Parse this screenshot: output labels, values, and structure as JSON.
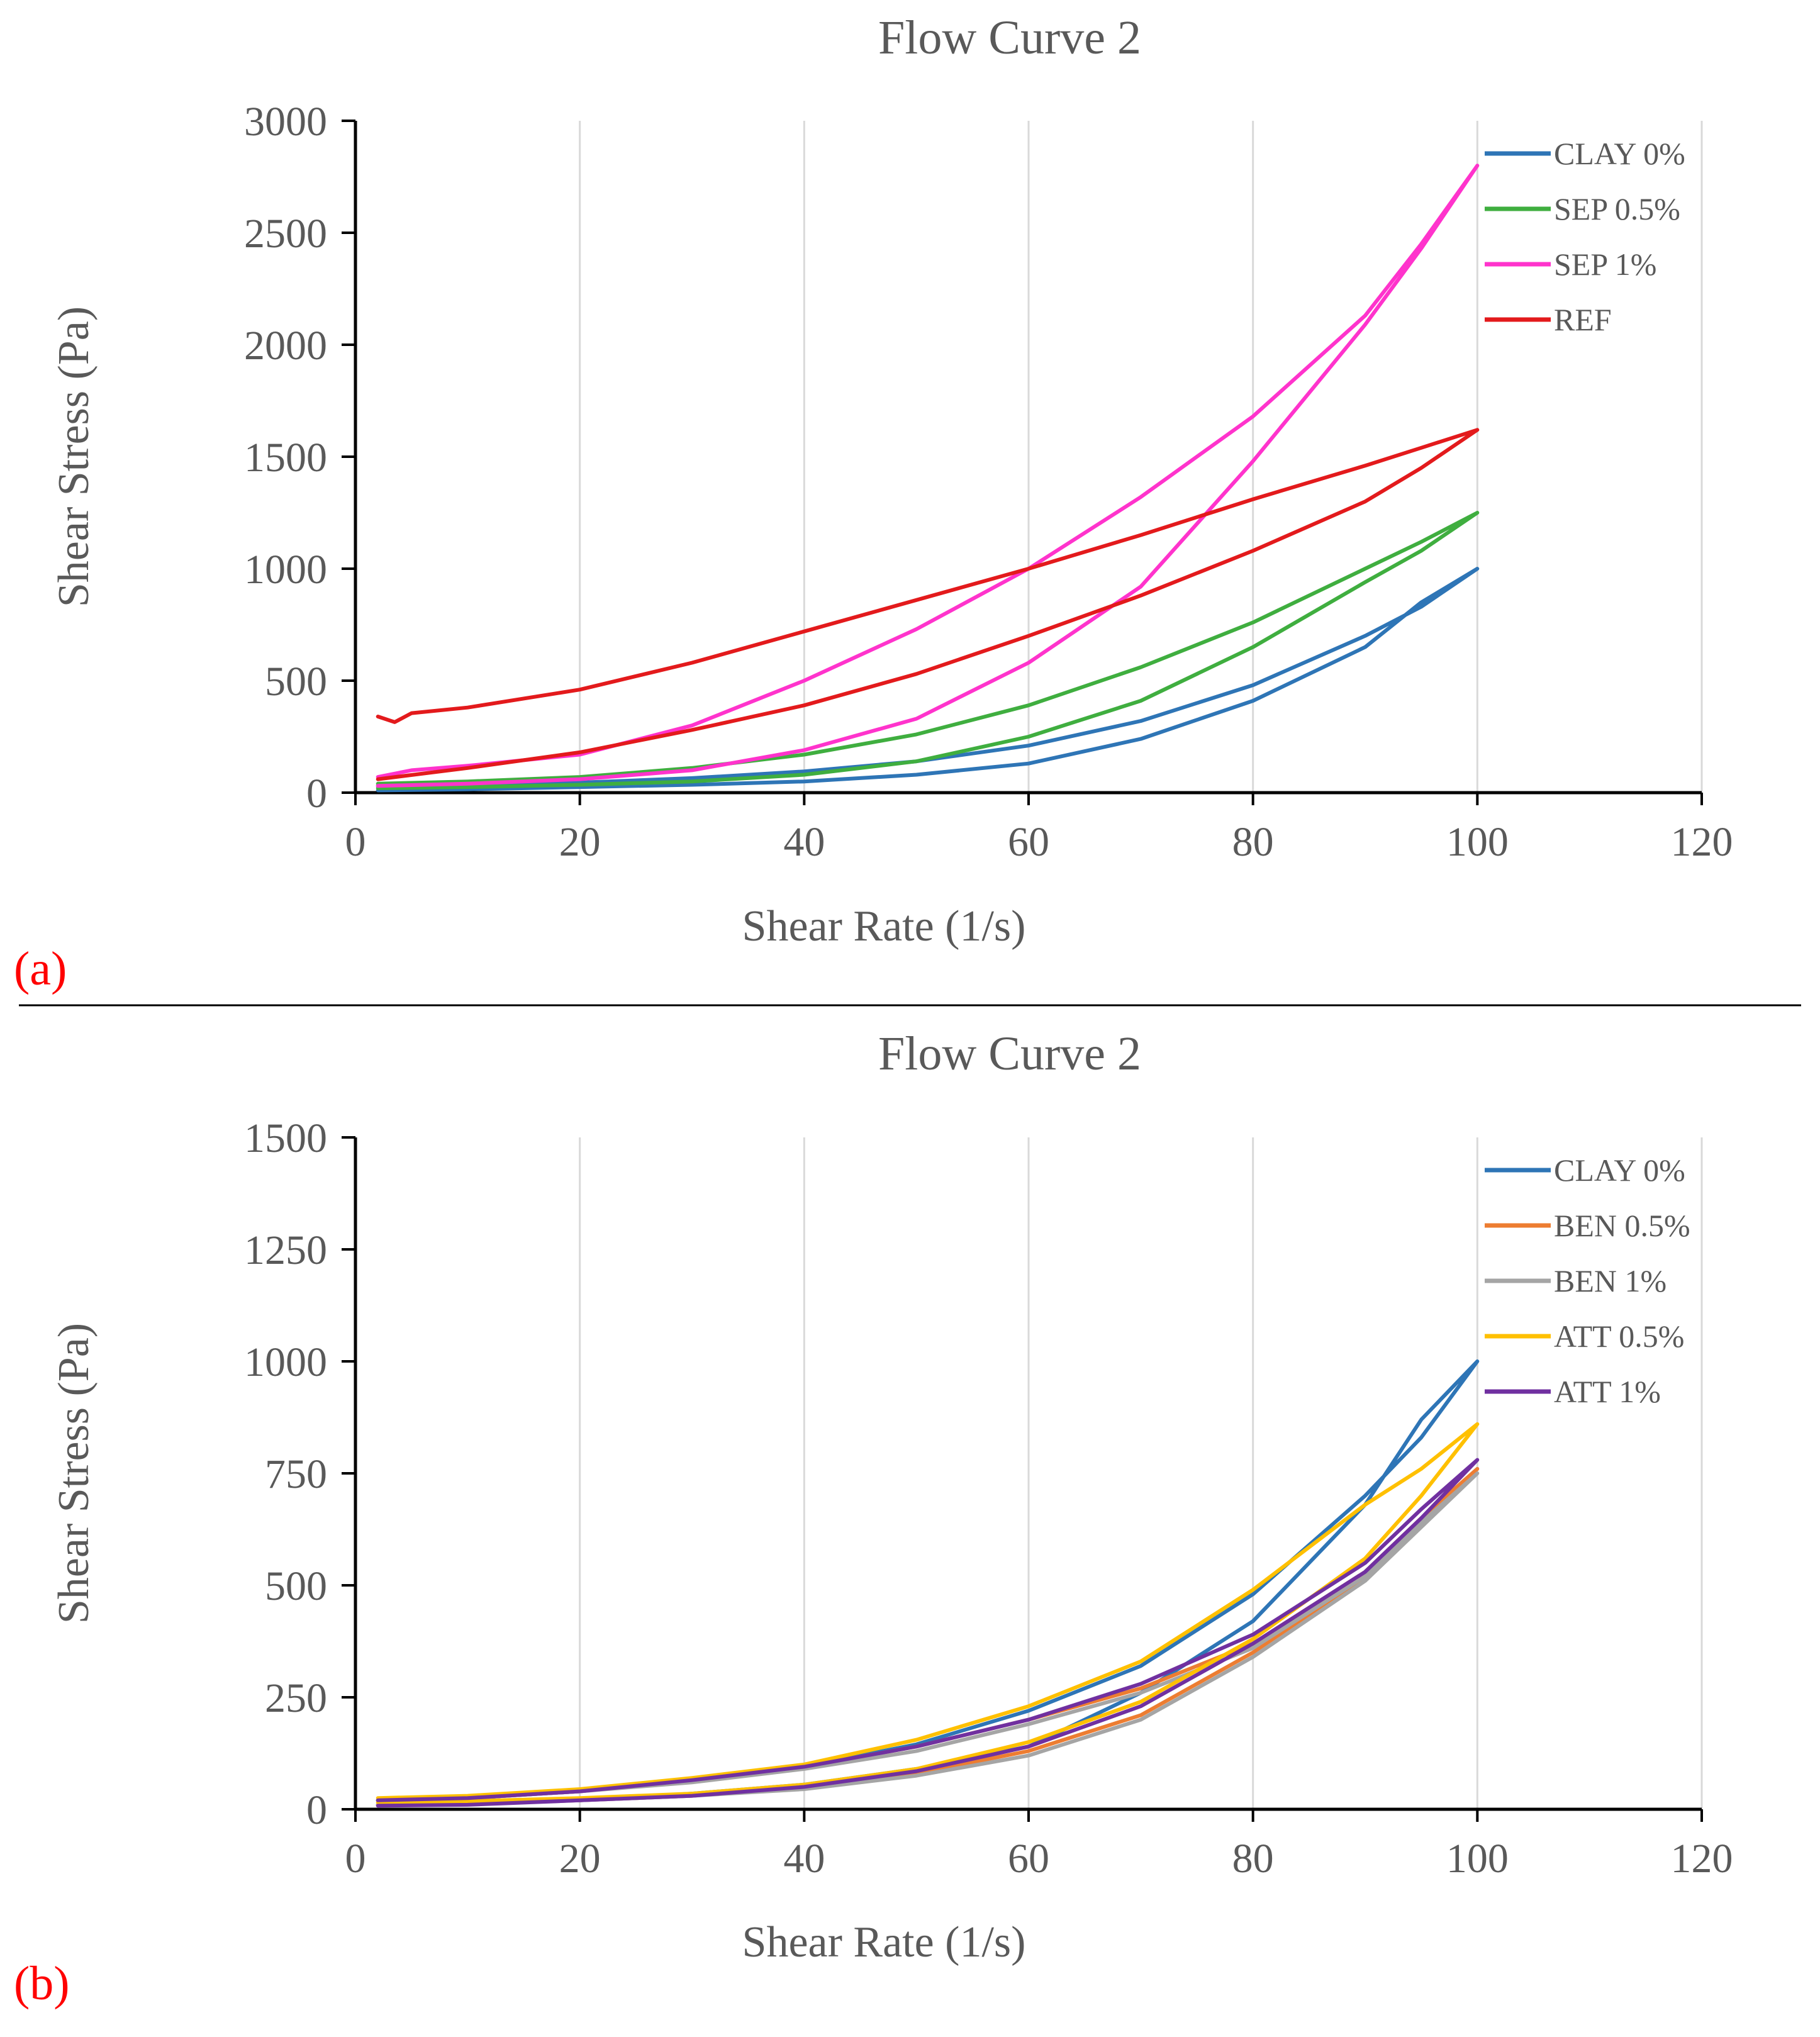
{
  "chart_data": [
    {
      "panel_label": "(a)",
      "type": "line",
      "title": "Flow Curve 2",
      "xlabel": "Shear Rate (1/s)",
      "ylabel": "Shear Stress (Pa)",
      "xlim": [
        0,
        120
      ],
      "ylim": [
        0,
        3000
      ],
      "xticks": [
        0,
        20,
        40,
        60,
        80,
        100,
        120
      ],
      "yticks": [
        0,
        500,
        1000,
        1500,
        2000,
        2500,
        3000
      ],
      "grid": "vertical",
      "legend_position": "top-right",
      "series": [
        {
          "name": "CLAY 0%",
          "color": "#2e75b6",
          "x": [
            2,
            10,
            20,
            30,
            40,
            50,
            60,
            70,
            80,
            90,
            95,
            100,
            95,
            90,
            80,
            70,
            60,
            50,
            40,
            30,
            20,
            10,
            2
          ],
          "y": [
            30,
            35,
            45,
            65,
            95,
            140,
            210,
            320,
            480,
            700,
            830,
            1000,
            850,
            650,
            410,
            240,
            130,
            80,
            50,
            35,
            25,
            15,
            10
          ]
        },
        {
          "name": "SEP 0.5%",
          "color": "#3fae3f",
          "x": [
            2,
            10,
            20,
            30,
            40,
            50,
            60,
            70,
            80,
            90,
            95,
            100,
            95,
            90,
            80,
            70,
            60,
            50,
            40,
            30,
            20,
            10,
            2
          ],
          "y": [
            40,
            50,
            70,
            110,
            170,
            260,
            390,
            560,
            760,
            1000,
            1120,
            1250,
            1080,
            940,
            650,
            410,
            250,
            140,
            80,
            50,
            35,
            25,
            20
          ]
        },
        {
          "name": "SEP 1%",
          "color": "#ff33cc",
          "x": [
            2,
            5,
            10,
            20,
            30,
            40,
            50,
            60,
            70,
            80,
            90,
            95,
            100,
            95,
            90,
            80,
            70,
            60,
            50,
            40,
            30,
            20,
            10,
            2
          ],
          "y": [
            70,
            100,
            120,
            170,
            300,
            500,
            730,
            1000,
            1320,
            1680,
            2130,
            2450,
            2800,
            2430,
            2090,
            1480,
            920,
            580,
            330,
            190,
            100,
            60,
            40,
            30
          ]
        },
        {
          "name": "REF",
          "color": "#e31a1c",
          "x": [
            2,
            3.5,
            5,
            10,
            20,
            30,
            40,
            50,
            60,
            70,
            80,
            90,
            95,
            100,
            95,
            90,
            80,
            70,
            60,
            50,
            40,
            30,
            20,
            10,
            2
          ],
          "y": [
            340,
            315,
            355,
            380,
            460,
            580,
            720,
            860,
            1000,
            1150,
            1310,
            1460,
            1540,
            1620,
            1450,
            1300,
            1080,
            880,
            700,
            530,
            390,
            280,
            180,
            110,
            60
          ]
        }
      ]
    },
    {
      "panel_label": "(b)",
      "type": "line",
      "title": "Flow Curve 2",
      "xlabel": "Shear Rate (1/s)",
      "ylabel": "Shear Stress (Pa)",
      "xlim": [
        0,
        120
      ],
      "ylim": [
        0,
        1500
      ],
      "xticks": [
        0,
        20,
        40,
        60,
        80,
        100,
        120
      ],
      "yticks": [
        0,
        250,
        500,
        750,
        1000,
        1250,
        1500
      ],
      "grid": "vertical",
      "legend_position": "top-right",
      "series": [
        {
          "name": "CLAY 0%",
          "color": "#2e75b6",
          "x": [
            2,
            10,
            20,
            30,
            40,
            50,
            60,
            70,
            80,
            90,
            95,
            100,
            95,
            90,
            80,
            70,
            60,
            50,
            40,
            30,
            20,
            10,
            2
          ],
          "y": [
            20,
            25,
            40,
            65,
            95,
            145,
            220,
            320,
            480,
            700,
            830,
            1000,
            870,
            680,
            420,
            260,
            140,
            90,
            55,
            35,
            20,
            15,
            10
          ]
        },
        {
          "name": "BEN 0.5%",
          "color": "#ed7d31",
          "x": [
            2,
            10,
            20,
            30,
            40,
            50,
            60,
            70,
            80,
            90,
            95,
            100,
            95,
            90,
            80,
            70,
            60,
            50,
            40,
            30,
            20,
            10,
            2
          ],
          "y": [
            20,
            25,
            40,
            65,
            95,
            140,
            200,
            270,
            370,
            530,
            650,
            760,
            640,
            520,
            350,
            210,
            130,
            80,
            50,
            30,
            20,
            12,
            10
          ]
        },
        {
          "name": "BEN 1%",
          "color": "#a5a5a5",
          "x": [
            2,
            10,
            20,
            30,
            40,
            50,
            60,
            70,
            80,
            90,
            95,
            100,
            95,
            90,
            80,
            70,
            60,
            50,
            40,
            30,
            20,
            10,
            2
          ],
          "y": [
            20,
            25,
            40,
            60,
            90,
            130,
            190,
            260,
            360,
            520,
            640,
            750,
            630,
            510,
            340,
            200,
            120,
            75,
            45,
            30,
            20,
            12,
            10
          ]
        },
        {
          "name": "ATT 0.5%",
          "color": "#ffc000",
          "x": [
            2,
            10,
            20,
            30,
            40,
            50,
            60,
            70,
            80,
            90,
            95,
            100,
            95,
            90,
            80,
            70,
            60,
            50,
            40,
            30,
            20,
            10,
            2
          ],
          "y": [
            25,
            30,
            45,
            70,
            100,
            155,
            230,
            330,
            490,
            680,
            760,
            860,
            700,
            560,
            380,
            240,
            150,
            90,
            55,
            35,
            25,
            18,
            15
          ]
        },
        {
          "name": "ATT 1%",
          "color": "#7030a0",
          "x": [
            2,
            10,
            20,
            30,
            40,
            50,
            60,
            70,
            80,
            90,
            95,
            100,
            95,
            90,
            80,
            70,
            60,
            50,
            40,
            30,
            20,
            10,
            2
          ],
          "y": [
            20,
            25,
            40,
            65,
            95,
            140,
            200,
            280,
            390,
            550,
            670,
            780,
            650,
            530,
            370,
            230,
            140,
            85,
            50,
            30,
            20,
            10,
            8
          ]
        }
      ]
    }
  ]
}
